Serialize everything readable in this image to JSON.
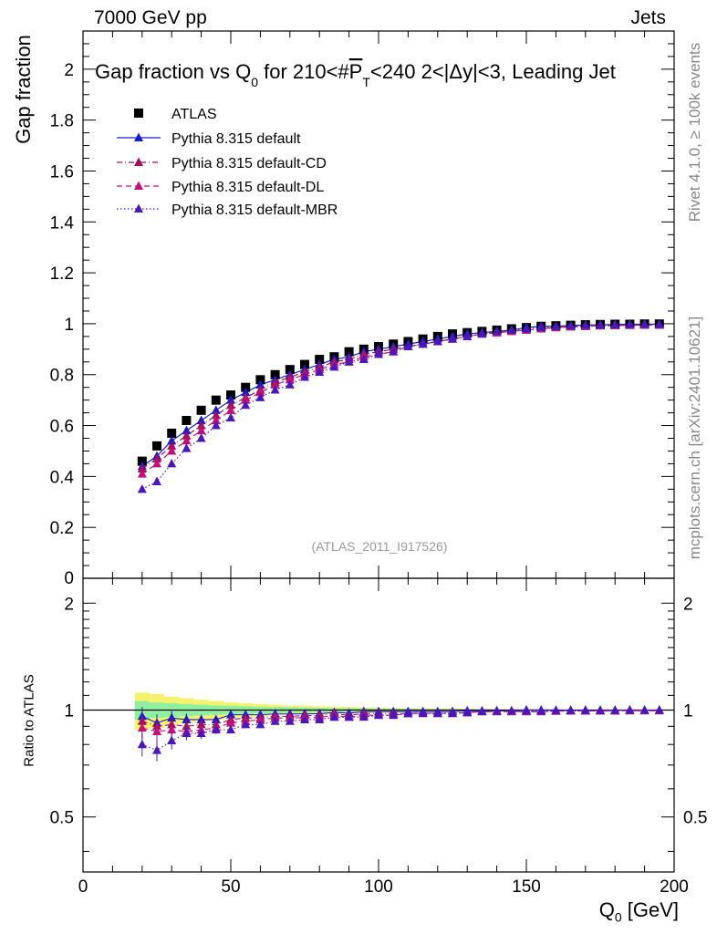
{
  "header": {
    "energy": "7000 GeV pp",
    "category": "Jets"
  },
  "side": {
    "rivet": "Rivet 4.1.0, ≥ 100k events",
    "mcplots": "mcplots.cern.ch [arXiv:2401.10621]"
  },
  "axis_labels": {
    "top_y": "Gap fraction",
    "bottom_y": "Ratio to ATLAS",
    "x_main": "Q",
    "x_sub": "0",
    "x_unit": " [GeV]"
  },
  "colors": {
    "atlas": "#000000",
    "default": "#1a1acd",
    "cd": "#a0105a",
    "dl": "#c2107a",
    "mbr": "#4a18b8",
    "band_yellow": "#f7f26e",
    "band_green": "#8ff0a0"
  },
  "chart_data": [
    {
      "type": "scatter",
      "title": "Gap fraction vs Q0 for 210<#P_T<240  2<|Δy|<3, Leading Jet",
      "title_parts": {
        "a": "Gap fraction vs Q",
        "a_sub": "0",
        "b": " for 210<#",
        "b_over": "P",
        "b_over_sub": "T",
        "c": "<240  2<|Δy|<3, Leading Jet"
      },
      "xlabel": "Q0 [GeV]",
      "ylabel": "Gap fraction",
      "xlim": [
        0,
        200
      ],
      "ylim": [
        0,
        2.15
      ],
      "yticks": [
        0.2,
        0.4,
        0.6,
        0.8,
        1,
        1.2,
        1.4,
        1.6,
        1.8,
        2
      ],
      "ytick_labels": [
        "0.2",
        "0.4",
        "0.6",
        "0.8",
        "1",
        "1.2",
        "1.4",
        "1.6",
        "1.8",
        "2"
      ],
      "y_zero_label": "0",
      "watermark": "(ATLAS_2011_I917526)",
      "x": [
        20,
        25,
        30,
        35,
        40,
        45,
        50,
        55,
        60,
        65,
        70,
        75,
        80,
        85,
        90,
        95,
        100,
        105,
        110,
        115,
        120,
        125,
        130,
        135,
        140,
        145,
        150,
        155,
        160,
        165,
        170,
        175,
        180,
        185,
        190,
        195
      ],
      "series": [
        {
          "name": "ATLAS",
          "marker": "square",
          "values": [
            0.46,
            0.52,
            0.57,
            0.62,
            0.66,
            0.7,
            0.72,
            0.75,
            0.78,
            0.8,
            0.82,
            0.84,
            0.86,
            0.87,
            0.89,
            0.9,
            0.91,
            0.92,
            0.93,
            0.94,
            0.95,
            0.96,
            0.965,
            0.97,
            0.975,
            0.98,
            0.985,
            0.99,
            0.992,
            0.994,
            0.996,
            0.997,
            0.998,
            0.998,
            0.999,
            0.999
          ]
        },
        {
          "name": "Pythia 8.315 default",
          "marker": "triangle",
          "line": "solid",
          "values": [
            0.44,
            0.48,
            0.54,
            0.58,
            0.62,
            0.66,
            0.7,
            0.73,
            0.76,
            0.78,
            0.8,
            0.82,
            0.84,
            0.86,
            0.87,
            0.89,
            0.9,
            0.91,
            0.92,
            0.93,
            0.94,
            0.95,
            0.96,
            0.965,
            0.97,
            0.975,
            0.985,
            0.99,
            0.99,
            0.993,
            0.995,
            0.996,
            0.997,
            0.998,
            0.998,
            0.999
          ]
        },
        {
          "name": "Pythia 8.315 default-CD",
          "marker": "triangle",
          "line": "dashdot",
          "values": [
            0.43,
            0.47,
            0.52,
            0.56,
            0.6,
            0.64,
            0.68,
            0.71,
            0.74,
            0.77,
            0.79,
            0.81,
            0.83,
            0.85,
            0.86,
            0.88,
            0.89,
            0.9,
            0.91,
            0.92,
            0.93,
            0.94,
            0.95,
            0.96,
            0.965,
            0.97,
            0.975,
            0.98,
            0.985,
            0.988,
            0.99,
            0.992,
            0.993,
            0.994,
            0.995,
            0.995
          ]
        },
        {
          "name": "Pythia 8.315 default-DL",
          "marker": "triangle",
          "line": "dashed",
          "values": [
            0.41,
            0.45,
            0.5,
            0.54,
            0.58,
            0.62,
            0.66,
            0.7,
            0.73,
            0.76,
            0.78,
            0.8,
            0.82,
            0.84,
            0.85,
            0.87,
            0.88,
            0.89,
            0.91,
            0.92,
            0.93,
            0.94,
            0.95,
            0.96,
            0.965,
            0.97,
            0.975,
            0.98,
            0.985,
            0.988,
            0.99,
            0.992,
            0.993,
            0.994,
            0.995,
            0.995
          ]
        },
        {
          "name": "Pythia 8.315 default-MBR",
          "marker": "triangle",
          "line": "dotted",
          "values": [
            0.35,
            0.38,
            0.45,
            0.51,
            0.55,
            0.6,
            0.63,
            0.68,
            0.71,
            0.74,
            0.76,
            0.79,
            0.81,
            0.83,
            0.85,
            0.86,
            0.88,
            0.89,
            0.91,
            0.92,
            0.93,
            0.94,
            0.95,
            0.96,
            0.97,
            0.975,
            0.98,
            0.985,
            0.99,
            0.992,
            0.994,
            0.995,
            0.996,
            0.997,
            0.998,
            0.998
          ]
        }
      ]
    },
    {
      "type": "scatter",
      "title": "Ratio to ATLAS",
      "ylabel": "Ratio to ATLAS",
      "xlabel": "Q0 [GeV]",
      "xlim": [
        0,
        200
      ],
      "ylim": [
        0.35,
        2.35
      ],
      "yscale": "log",
      "yticks": [
        0.5,
        1,
        2
      ],
      "ytick_labels": [
        "0.5",
        "1",
        "2"
      ],
      "xticks": [
        0,
        50,
        100,
        150,
        200
      ],
      "xtick_labels": [
        "0",
        "50",
        "100",
        "150",
        "200"
      ],
      "x": [
        20,
        25,
        30,
        35,
        40,
        45,
        50,
        55,
        60,
        65,
        70,
        75,
        80,
        85,
        90,
        95,
        100,
        105,
        110,
        115,
        120,
        125,
        130,
        135,
        140,
        145,
        150,
        155,
        160,
        165,
        170,
        175,
        180,
        185,
        190,
        195
      ],
      "band": {
        "yellow_half_width": [
          0.12,
          0.11,
          0.09,
          0.08,
          0.07,
          0.06,
          0.05,
          0.045,
          0.04,
          0.035,
          0.03,
          0.028,
          0.025,
          0.022,
          0.02,
          0.018,
          0.016,
          0.014,
          0.012,
          0.011,
          0.01,
          0.009,
          0.008,
          0.007,
          0.006,
          0.005,
          0.005,
          0.004,
          0.004,
          0.003,
          0.003,
          0.003,
          0.002,
          0.002,
          0.002,
          0.002
        ],
        "green_half_width": [
          0.06,
          0.05,
          0.045,
          0.04,
          0.035,
          0.03,
          0.028,
          0.025,
          0.022,
          0.02,
          0.018,
          0.016,
          0.014,
          0.012,
          0.011,
          0.01,
          0.009,
          0.008,
          0.007,
          0.006,
          0.005,
          0.005,
          0.004,
          0.004,
          0.003,
          0.003,
          0.003,
          0.002,
          0.002,
          0.002,
          0.002,
          0.002,
          0.001,
          0.001,
          0.001,
          0.001
        ]
      },
      "series": [
        {
          "name": "Pythia 8.315 default",
          "values": [
            0.96,
            0.92,
            0.95,
            0.94,
            0.94,
            0.94,
            0.97,
            0.97,
            0.97,
            0.975,
            0.975,
            0.976,
            0.977,
            0.985,
            0.98,
            0.99,
            0.99,
            0.99,
            0.99,
            0.99,
            0.99,
            0.99,
            0.995,
            0.995,
            0.995,
            0.995,
            1.0,
            1.0,
            0.998,
            0.999,
            0.999,
            0.999,
            0.999,
            1.0,
            0.999,
            1.0
          ]
        },
        {
          "name": "Pythia 8.315 default-CD",
          "values": [
            0.93,
            0.9,
            0.91,
            0.9,
            0.91,
            0.91,
            0.94,
            0.95,
            0.95,
            0.96,
            0.96,
            0.965,
            0.965,
            0.977,
            0.966,
            0.978,
            0.978,
            0.978,
            0.978,
            0.979,
            0.979,
            0.979,
            0.984,
            0.99,
            0.99,
            0.99,
            0.99,
            0.99,
            0.993,
            0.994,
            0.994,
            0.995,
            0.995,
            0.996,
            0.996,
            0.996
          ]
        },
        {
          "name": "Pythia 8.315 default-DL",
          "values": [
            0.89,
            0.87,
            0.88,
            0.87,
            0.88,
            0.89,
            0.92,
            0.93,
            0.94,
            0.95,
            0.95,
            0.952,
            0.953,
            0.966,
            0.955,
            0.967,
            0.967,
            0.967,
            0.978,
            0.979,
            0.979,
            0.979,
            0.984,
            0.99,
            0.99,
            0.99,
            0.99,
            0.99,
            0.993,
            0.994,
            0.994,
            0.995,
            0.995,
            0.996,
            0.996,
            0.996
          ]
        },
        {
          "name": "Pythia 8.315 default-MBR",
          "values": [
            0.8,
            0.77,
            0.82,
            0.86,
            0.86,
            0.88,
            0.88,
            0.91,
            0.91,
            0.93,
            0.93,
            0.94,
            0.94,
            0.955,
            0.955,
            0.956,
            0.967,
            0.967,
            0.978,
            0.979,
            0.979,
            0.979,
            0.984,
            0.99,
            0.995,
            0.995,
            0.995,
            0.995,
            0.998,
            0.998,
            0.998,
            0.998,
            0.998,
            0.999,
            0.999,
            0.999
          ]
        }
      ]
    }
  ]
}
